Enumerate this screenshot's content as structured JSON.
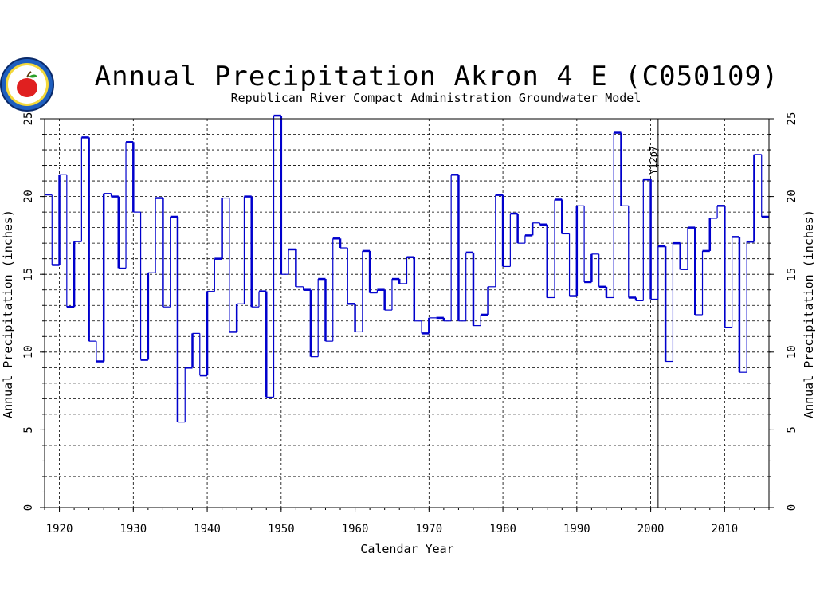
{
  "chart_data": {
    "type": "line",
    "title": "Annual Precipitation Akron 4 E (C050109)",
    "subtitle": "Republican River Compact Administration Groundwater Model",
    "xlabel": "Calendar Year",
    "ylabel": "Annual Precipitation (inches)",
    "ylabel_right": "Annual Precipitation (inches)",
    "xlim": [
      1918,
      2016
    ],
    "ylim": [
      0,
      25
    ],
    "x_ticks": [
      1920,
      1930,
      1940,
      1950,
      1960,
      1970,
      1980,
      1990,
      2000,
      2010
    ],
    "x_tick_labels": [
      "1920",
      "1930",
      "1940",
      "1950",
      "1960",
      "1970",
      "1980",
      "1990",
      "2000",
      "2010"
    ],
    "y_ticks": [
      0,
      5,
      10,
      15,
      20,
      25
    ],
    "y_tick_labels": [
      "0",
      "5",
      "10",
      "15",
      "20",
      "25"
    ],
    "y_minor_step": 1,
    "grid": true,
    "step": true,
    "line_color": "#0000cc",
    "annotation": {
      "label": "Y12p7",
      "x": 2001
    },
    "series": [
      {
        "x": [
          1918,
          1919,
          1920,
          1921,
          1922,
          1923,
          1924,
          1925,
          1926,
          1927,
          1928,
          1929,
          1930,
          1931,
          1932,
          1933,
          1934,
          1935,
          1936,
          1937,
          1938,
          1939,
          1940,
          1941,
          1942,
          1943,
          1944,
          1945,
          1946,
          1947,
          1948,
          1949,
          1950,
          1951,
          1952,
          1953,
          1954,
          1955,
          1956,
          1957,
          1958,
          1959,
          1960,
          1961,
          1962,
          1963,
          1964,
          1965,
          1966,
          1967,
          1968,
          1969,
          1970,
          1971,
          1972,
          1973,
          1974,
          1975,
          1976,
          1977,
          1978,
          1979,
          1980,
          1981,
          1982,
          1983,
          1984,
          1985,
          1986,
          1987,
          1988,
          1989,
          1990,
          1991,
          1992,
          1993,
          1994,
          1995,
          1996,
          1997,
          1998,
          1999,
          2000,
          2001,
          2002,
          2003,
          2004,
          2005,
          2006,
          2007,
          2008,
          2009,
          2010,
          2011,
          2012,
          2013,
          2014,
          2015
        ],
        "values": [
          20.1,
          15.6,
          21.4,
          12.9,
          17.1,
          23.8,
          10.7,
          9.4,
          20.2,
          20.0,
          15.4,
          23.5,
          19.0,
          9.5,
          15.1,
          19.9,
          12.9,
          18.7,
          5.5,
          9.0,
          11.2,
          8.5,
          13.9,
          16.0,
          19.9,
          11.3,
          13.1,
          20.0,
          12.9,
          13.9,
          7.1,
          25.2,
          15.0,
          16.6,
          14.2,
          14.0,
          9.7,
          14.7,
          10.7,
          17.3,
          16.7,
          13.1,
          11.3,
          16.5,
          13.8,
          14.0,
          12.7,
          14.7,
          14.4,
          16.1,
          12.0,
          11.2,
          12.2,
          12.2,
          12.0,
          21.4,
          12.0,
          16.4,
          11.7,
          12.4,
          14.2,
          20.1,
          15.5,
          18.9,
          17.0,
          17.5,
          18.3,
          18.2,
          13.5,
          19.8,
          17.6,
          13.6,
          19.4,
          14.5,
          16.3,
          14.2,
          13.5,
          24.1,
          19.4,
          13.5,
          13.3,
          21.1,
          13.4,
          16.8,
          9.4,
          17.0,
          15.3,
          18.0,
          12.4,
          16.5,
          18.6,
          19.4,
          11.6,
          17.4,
          8.7,
          17.1,
          22.7,
          18.7
        ]
      }
    ]
  },
  "logo": {
    "name": "Colorado Division of Water Resources seal"
  }
}
